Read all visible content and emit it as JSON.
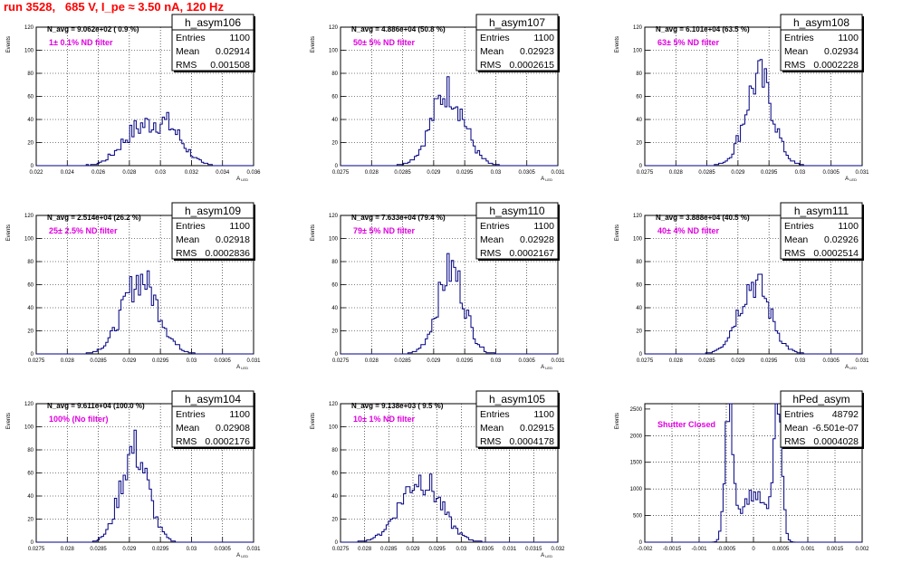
{
  "header": {
    "title": "run 3528,   685 V, I_pe ≈ 3.50 nA, 120 Hz"
  },
  "chart_data": [
    {
      "type": "histogram",
      "name": "h_asym106",
      "ylabel": "Events",
      "xlabel": "A_LED",
      "ylim": [
        0,
        120
      ],
      "yticks": [
        "0",
        "20",
        "40",
        "60",
        "80",
        "100",
        "120"
      ],
      "xlim": [
        0.022,
        0.036
      ],
      "xticks": [
        "0.022",
        "0.024",
        "0.026",
        "0.028",
        "0.03",
        "0.032",
        "0.034",
        "0.036"
      ],
      "navg": "N_avg = 9.062e+02 ( 0.9 %)",
      "filter": "1± 0.1% ND filter",
      "stats": {
        "entries": "1100",
        "mean": "0.02914",
        "rms": "0.001508"
      },
      "peak": 38,
      "dist": "broad"
    },
    {
      "type": "histogram",
      "name": "h_asym107",
      "ylabel": "Events",
      "xlabel": "A_LED",
      "ylim": [
        0,
        120
      ],
      "yticks": [
        "0",
        "20",
        "40",
        "60",
        "80",
        "100",
        "120"
      ],
      "xlim": [
        0.0275,
        0.031
      ],
      "xticks": [
        "0.0275",
        "0.028",
        "0.0285",
        "0.029",
        "0.0295",
        "0.03",
        "0.0305",
        "0.031"
      ],
      "navg": "N_avg = 4.886e+04 (50.8 %)",
      "filter": "50± 5% ND filter",
      "stats": {
        "entries": "1100",
        "mean": "0.02923",
        "rms": "0.0002615"
      },
      "peak": 65,
      "dist": "normal"
    },
    {
      "type": "histogram",
      "name": "h_asym108",
      "ylabel": "Events",
      "xlabel": "A_LED",
      "ylim": [
        0,
        120
      ],
      "yticks": [
        "0",
        "20",
        "40",
        "60",
        "80",
        "100",
        "120"
      ],
      "xlim": [
        0.0275,
        0.031
      ],
      "xticks": [
        "0.0275",
        "0.028",
        "0.0285",
        "0.029",
        "0.0295",
        "0.03",
        "0.0305",
        "0.031"
      ],
      "navg": "N_avg = 6.101e+04 (63.5 %)",
      "filter": "63± 5% ND filter",
      "stats": {
        "entries": "1100",
        "mean": "0.02934",
        "rms": "0.0002228"
      },
      "peak": 76,
      "dist": "normal"
    },
    {
      "type": "histogram",
      "name": "h_asym109",
      "ylabel": "Events",
      "xlabel": "A_LED",
      "ylim": [
        0,
        120
      ],
      "yticks": [
        "0",
        "20",
        "40",
        "60",
        "80",
        "100",
        "120"
      ],
      "xlim": [
        0.0275,
        0.031
      ],
      "xticks": [
        "0.0275",
        "0.028",
        "0.0285",
        "0.029",
        "0.0295",
        "0.03",
        "0.0305",
        "0.031"
      ],
      "navg": "N_avg = 2.514e+04 (26.2 %)",
      "filter": "25± 2.5% ND filter",
      "stats": {
        "entries": "1100",
        "mean": "0.02918",
        "rms": "0.0002836"
      },
      "peak": 65,
      "dist": "normal"
    },
    {
      "type": "histogram",
      "name": "h_asym110",
      "ylabel": "Events",
      "xlabel": "A_LED",
      "ylim": [
        0,
        120
      ],
      "yticks": [
        "0",
        "20",
        "40",
        "60",
        "80",
        "100",
        "120"
      ],
      "xlim": [
        0.0275,
        0.031
      ],
      "xticks": [
        "0.0275",
        "0.028",
        "0.0285",
        "0.029",
        "0.0295",
        "0.03",
        "0.0305",
        "0.031"
      ],
      "navg": "N_avg = 7.633e+04 (79.4 %)",
      "filter": "79± 5% ND filter",
      "stats": {
        "entries": "1100",
        "mean": "0.02928",
        "rms": "0.0002167"
      },
      "peak": 73,
      "dist": "normal"
    },
    {
      "type": "histogram",
      "name": "h_asym111",
      "ylabel": "Events",
      "xlabel": "A_LED",
      "ylim": [
        0,
        120
      ],
      "yticks": [
        "0",
        "20",
        "40",
        "60",
        "80",
        "100",
        "120"
      ],
      "xlim": [
        0.0275,
        0.031
      ],
      "xticks": [
        "0.0275",
        "0.028",
        "0.0285",
        "0.029",
        "0.0295",
        "0.03",
        "0.0305",
        "0.031"
      ],
      "navg": "N_avg = 3.888e+04 (40.5 %)",
      "filter": "40± 4% ND filter",
      "stats": {
        "entries": "1100",
        "mean": "0.02926",
        "rms": "0.0002514"
      },
      "peak": 62,
      "dist": "normal"
    },
    {
      "type": "histogram",
      "name": "h_asym104",
      "ylabel": "Events",
      "xlabel": "A_LED",
      "ylim": [
        0,
        120
      ],
      "yticks": [
        "0",
        "20",
        "40",
        "60",
        "80",
        "100",
        "120"
      ],
      "xlim": [
        0.0275,
        0.031
      ],
      "xticks": [
        "0.0275",
        "0.028",
        "0.0285",
        "0.029",
        "0.0295",
        "0.03",
        "0.0305",
        "0.031"
      ],
      "navg": "N_avg = 9.611e+04 (100.0 %)",
      "filter": "100% (No filter)",
      "stats": {
        "entries": "1100",
        "mean": "0.02908",
        "rms": "0.0002176"
      },
      "peak": 80,
      "dist": "normal"
    },
    {
      "type": "histogram",
      "name": "h_asym105",
      "ylabel": "Events",
      "xlabel": "A_LED",
      "ylim": [
        0,
        120
      ],
      "yticks": [
        "0",
        "20",
        "40",
        "60",
        "80",
        "100",
        "120"
      ],
      "xlim": [
        0.0275,
        0.032
      ],
      "xticks": [
        "0.0275",
        "0.028",
        "0.0285",
        "0.029",
        "0.0295",
        "0.03",
        "0.0305",
        "0.031",
        "0.0315",
        "0.032"
      ],
      "navg": "N_avg = 9.138e+03 ( 9.5 %)",
      "filter": "10± 1% ND filter",
      "stats": {
        "entries": "1100",
        "mean": "0.02915",
        "rms": "0.0004178"
      },
      "peak": 55,
      "dist": "normal"
    },
    {
      "type": "histogram",
      "name": "hPed_asym",
      "ylabel": "Events",
      "xlabel": "",
      "ylim": [
        0,
        2600
      ],
      "yticks": [
        "0",
        "500",
        "1000",
        "1500",
        "2000",
        "2500"
      ],
      "xlim": [
        -0.002,
        0.002
      ],
      "xticks": [
        "-0.002",
        "-0.0015",
        "-0.001",
        "-0.0005",
        "0",
        "0.0005",
        "0.001",
        "0.0015",
        "0.002"
      ],
      "navg": "",
      "filter": "Shutter Closed",
      "stats": {
        "entries": "48792",
        "mean": "-6.501e-07",
        "rms": "0.0004028"
      },
      "peak": 2480,
      "dist": "bimodal"
    }
  ]
}
